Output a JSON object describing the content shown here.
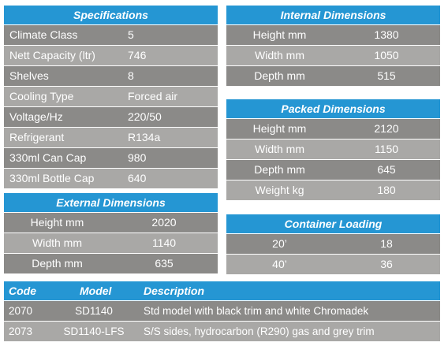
{
  "specifications": {
    "title": "Specifications",
    "rows": [
      {
        "label": "Climate Class",
        "value": "5"
      },
      {
        "label": "Nett Capacity (ltr)",
        "value": "746"
      },
      {
        "label": "Shelves",
        "value": "8"
      },
      {
        "label": "Cooling Type",
        "value": "Forced air"
      },
      {
        "label": "Voltage/Hz",
        "value": "220/50"
      },
      {
        "label": "Refrigerant",
        "value": "R134a"
      },
      {
        "label": "330ml Can Cap",
        "value": "980"
      },
      {
        "label": "330ml Bottle Cap",
        "value": "640"
      }
    ]
  },
  "internal_dimensions": {
    "title": "Internal Dimensions",
    "rows": [
      {
        "label": "Height mm",
        "value": "1380"
      },
      {
        "label": "Width mm",
        "value": "1050"
      },
      {
        "label": "Depth mm",
        "value": "515"
      }
    ]
  },
  "packed_dimensions": {
    "title": "Packed Dimensions",
    "rows": [
      {
        "label": "Height mm",
        "value": "2120"
      },
      {
        "label": "Width mm",
        "value": "1150"
      },
      {
        "label": "Depth mm",
        "value": "645"
      },
      {
        "label": "Weight kg",
        "value": "180"
      }
    ]
  },
  "external_dimensions": {
    "title": "External Dimensions",
    "rows": [
      {
        "label": "Height mm",
        "value": "2020"
      },
      {
        "label": "Width mm",
        "value": "1140"
      },
      {
        "label": "Depth mm",
        "value": "635"
      }
    ]
  },
  "container_loading": {
    "title": "Container Loading",
    "rows": [
      {
        "label": "20’",
        "value": "18"
      },
      {
        "label": "40’",
        "value": "36"
      }
    ]
  },
  "codes": {
    "headers": {
      "code": "Code",
      "model": "Model",
      "description": "Description"
    },
    "rows": [
      {
        "code": "2070",
        "model": "SD1140",
        "description": "Std model with black trim and white Chromadek"
      },
      {
        "code": "2073",
        "model": "SD1140-LFS",
        "description": "S/S sides, hydrocarbon (R290) gas and grey trim"
      }
    ]
  },
  "colors": {
    "header_blue": "#2596d3",
    "row_dark": "#8b8a88",
    "row_light": "#a9a8a6"
  }
}
